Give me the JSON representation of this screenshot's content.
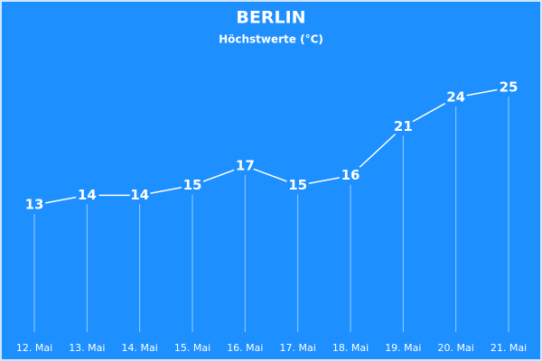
{
  "chart_data": {
    "type": "line",
    "title": "BERLIN",
    "subtitle": "Höchstwerte (°C)",
    "categories": [
      "12. Mai",
      "13. Mai",
      "14. Mai",
      "15. Mai",
      "16. Mai",
      "17. Mai",
      "18. Mai",
      "19. Mai",
      "20. Mai",
      "21. Mai"
    ],
    "values": [
      13,
      14,
      14,
      15,
      17,
      15,
      16,
      21,
      24,
      25
    ],
    "color": "#ffffff",
    "background": "#1e8fff",
    "ylim": [
      0,
      30
    ]
  }
}
